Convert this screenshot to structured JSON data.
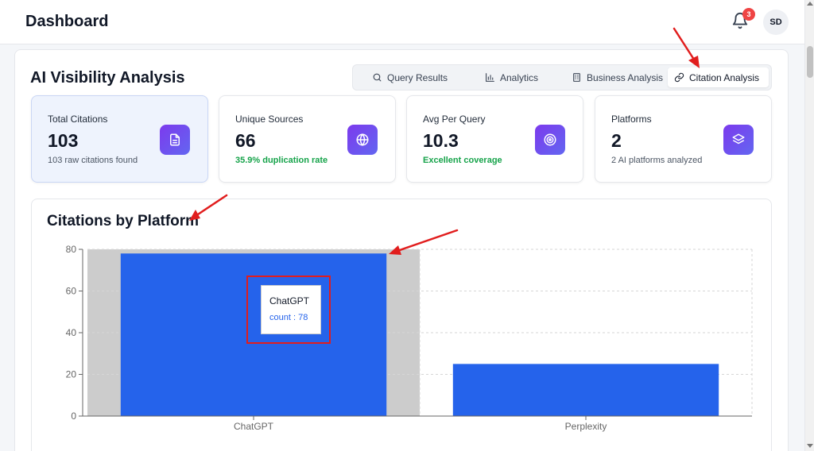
{
  "header": {
    "title": "Dashboard",
    "notification_count": "3",
    "avatar_initials": "SD"
  },
  "section": {
    "title": "AI Visibility Analysis"
  },
  "tabs": [
    {
      "label": "Query Results",
      "icon": "search-icon",
      "active": false
    },
    {
      "label": "Analytics",
      "icon": "bar-chart-icon",
      "active": false
    },
    {
      "label": "Business Analysis",
      "icon": "building-icon",
      "active": false
    },
    {
      "label": "Citation Analysis",
      "icon": "link-icon",
      "active": true
    }
  ],
  "stats": [
    {
      "label": "Total Citations",
      "value": "103",
      "sub": "103 raw citations found",
      "icon": "document-icon"
    },
    {
      "label": "Unique Sources",
      "value": "66",
      "sub": "35.9% duplication rate",
      "icon": "globe-icon"
    },
    {
      "label": "Avg Per Query",
      "value": "10.3",
      "sub": "Excellent coverage",
      "icon": "target-icon"
    },
    {
      "label": "Platforms",
      "value": "2",
      "sub": "2 AI platforms analyzed",
      "icon": "layers-icon"
    }
  ],
  "chart": {
    "title": "Citations by Platform"
  },
  "chart_data": {
    "type": "bar",
    "categories": [
      "ChatGPT",
      "Perplexity"
    ],
    "values": [
      78,
      25
    ],
    "ylim": [
      0,
      80
    ],
    "yticks": [
      0,
      20,
      40,
      60,
      80
    ],
    "grid": true,
    "bar_color": "#2563eb",
    "hovered_category": "ChatGPT"
  },
  "tooltip": {
    "name": "ChatGPT",
    "value_text": "count : 78"
  },
  "colors": {
    "accent": "#2563eb",
    "icon_gradient_start": "#7c3aed",
    "icon_gradient_end": "#6366f1",
    "success": "#16a34a",
    "badge": "#ef4444",
    "annotation": "#e11d1d"
  }
}
